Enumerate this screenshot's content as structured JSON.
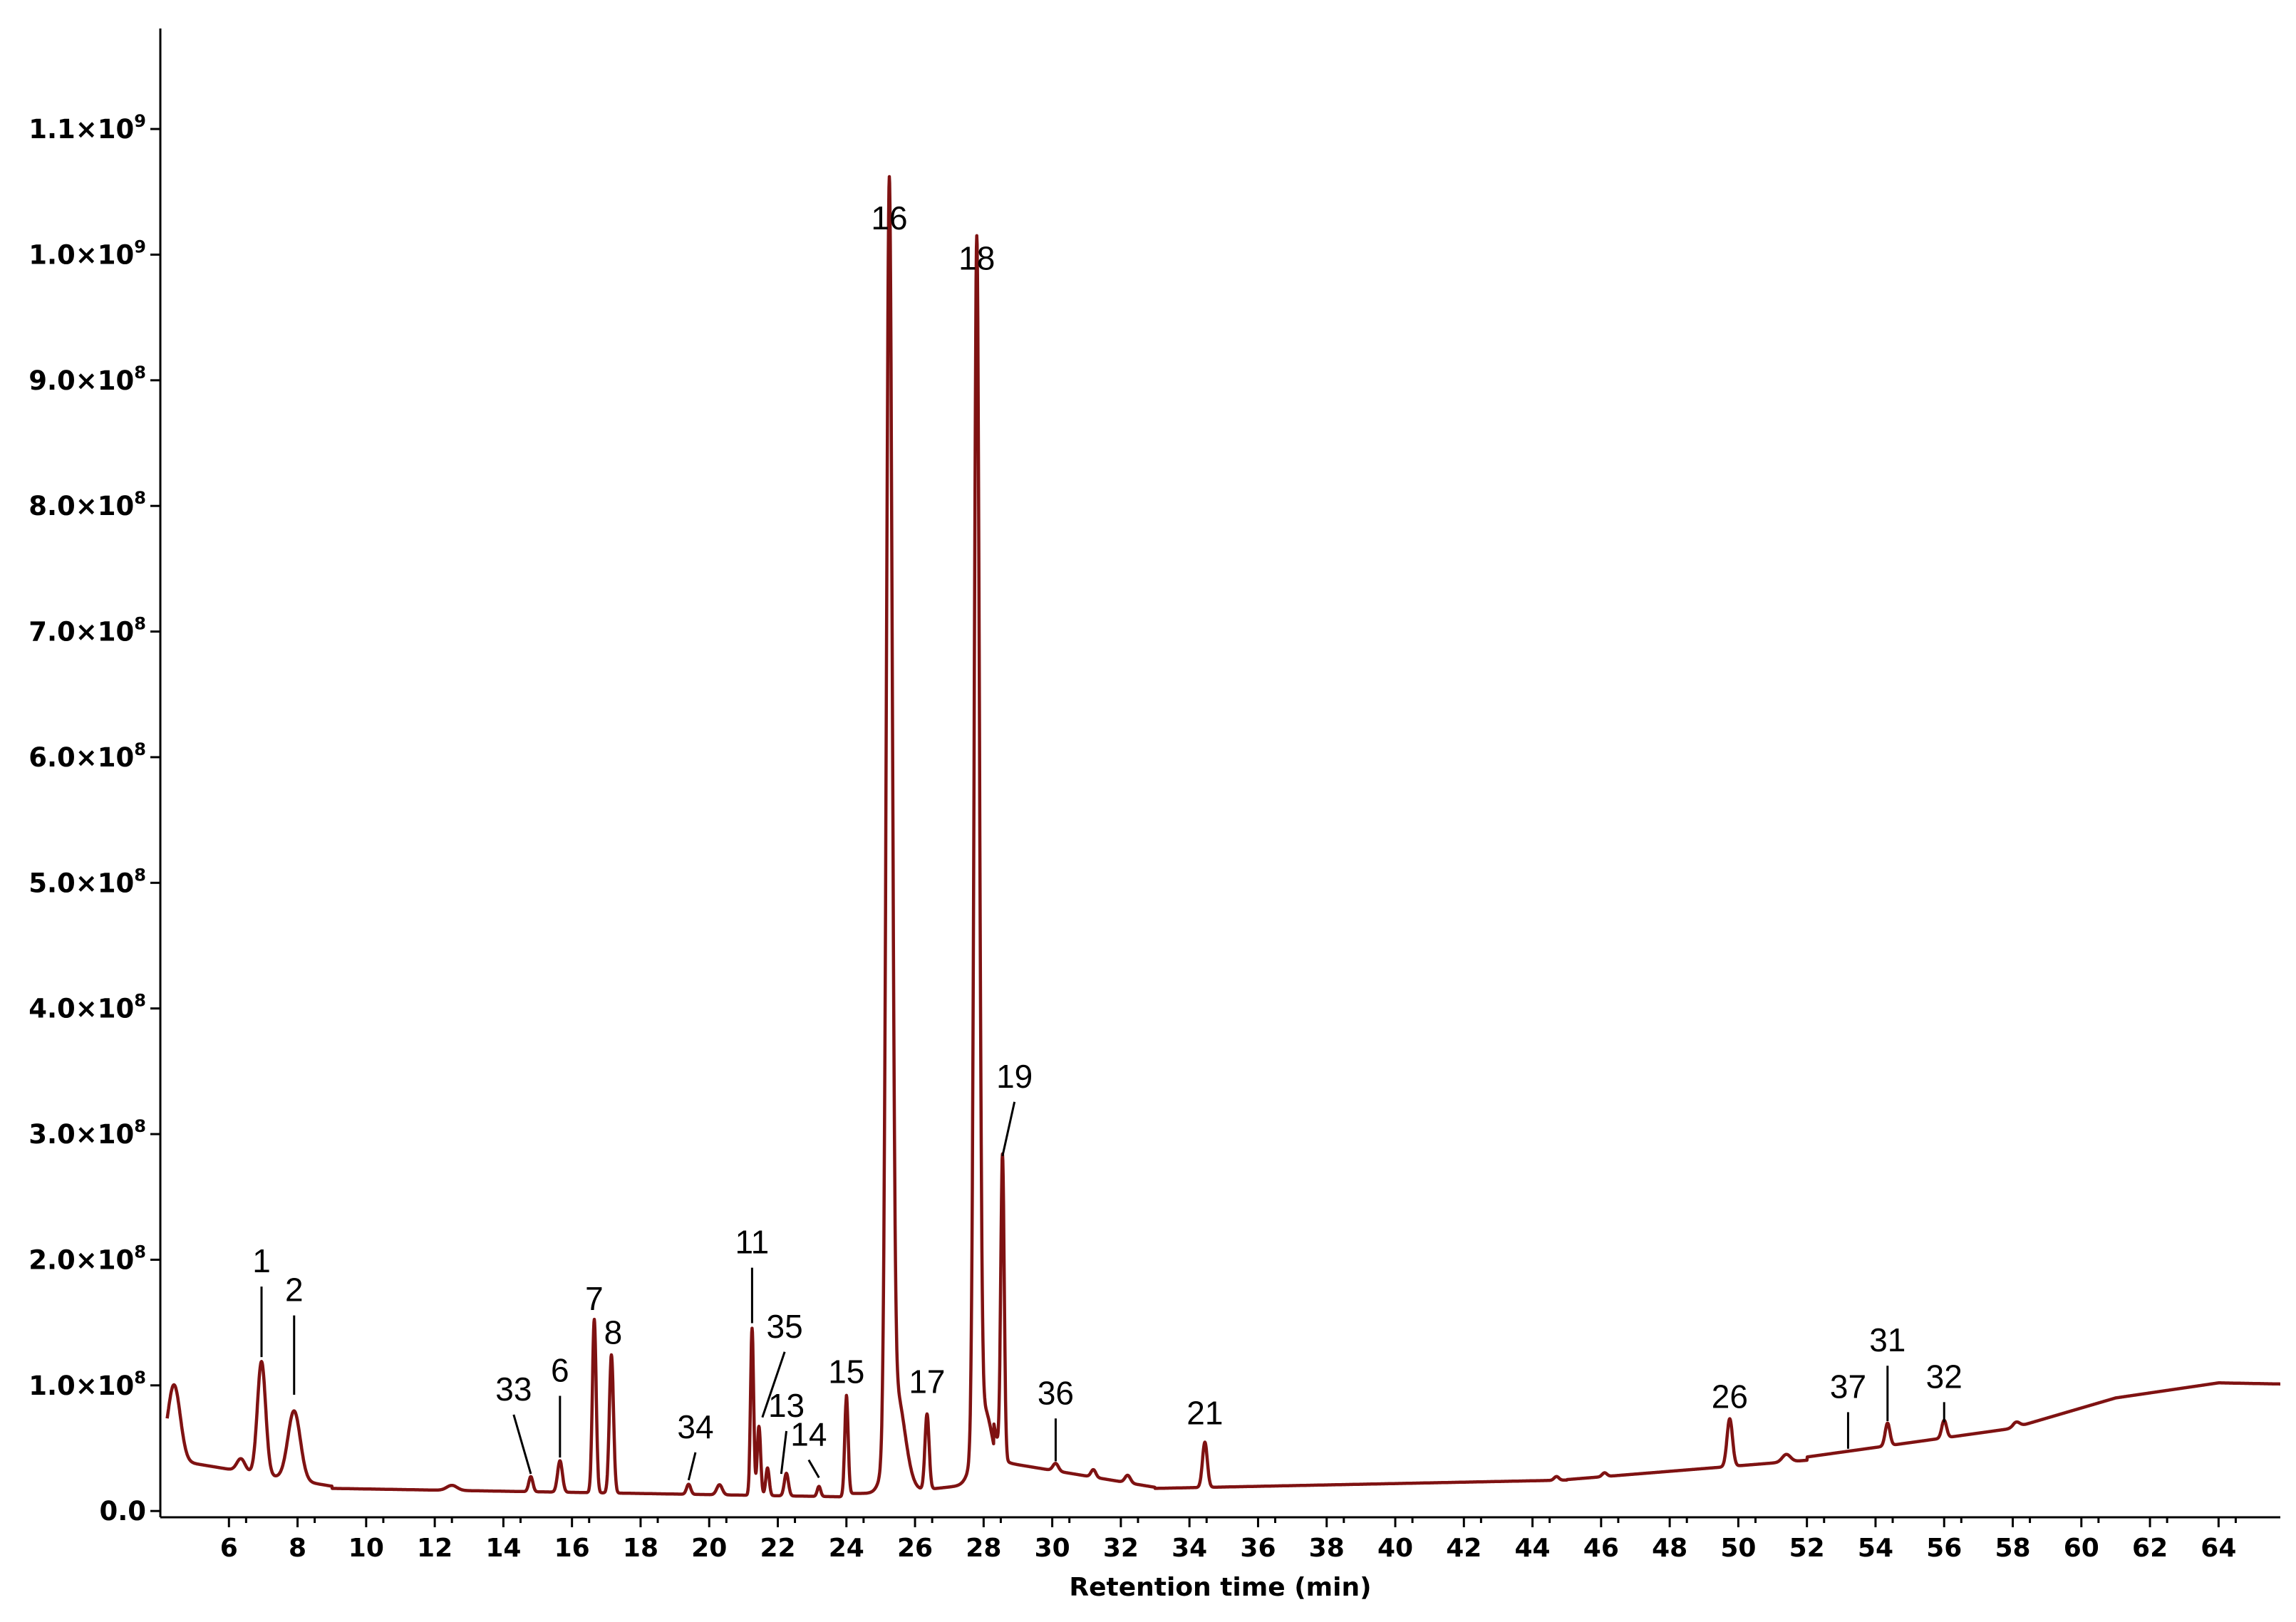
{
  "chart_data": {
    "type": "line",
    "xlabel": "Retention time (min)",
    "ylabel": "",
    "title": "",
    "xlim": [
      4.0,
      65.8
    ],
    "ylim": [
      -5000000,
      1180000000
    ],
    "grid": false,
    "legend": "none",
    "line_color": "#7f1212",
    "x_ticks": [
      6,
      8,
      10,
      12,
      14,
      16,
      18,
      20,
      22,
      24,
      26,
      28,
      30,
      32,
      34,
      36,
      38,
      40,
      42,
      44,
      46,
      48,
      50,
      52,
      54,
      56,
      58,
      60,
      62,
      64
    ],
    "y_ticks": [
      {
        "value": 0,
        "mantissa": "0.0",
        "exp": ""
      },
      {
        "value": 100000000,
        "mantissa": "1.0×10",
        "exp": "8"
      },
      {
        "value": 200000000,
        "mantissa": "2.0×10",
        "exp": "8"
      },
      {
        "value": 300000000,
        "mantissa": "3.0×10",
        "exp": "8"
      },
      {
        "value": 400000000,
        "mantissa": "4.0×10",
        "exp": "8"
      },
      {
        "value": 500000000,
        "mantissa": "5.0×10",
        "exp": "8"
      },
      {
        "value": 600000000,
        "mantissa": "6.0×10",
        "exp": "8"
      },
      {
        "value": 700000000,
        "mantissa": "7.0×10",
        "exp": "8"
      },
      {
        "value": 800000000,
        "mantissa": "8.0×10",
        "exp": "8"
      },
      {
        "value": 900000000,
        "mantissa": "9.0×10",
        "exp": "8"
      },
      {
        "value": 1000000000,
        "mantissa": "1.0×10",
        "exp": "9"
      },
      {
        "value": 1100000000,
        "mantissa": "1.1×10",
        "exp": "9"
      }
    ],
    "peaks": [
      {
        "label": "1",
        "x": 6.95,
        "y": 118000000,
        "label_x": 6.95,
        "label_y": 190000000,
        "leader": true
      },
      {
        "label": "2",
        "x": 7.9,
        "y": 88000000,
        "label_x": 7.9,
        "label_y": 167000000,
        "leader": true
      },
      {
        "label": "33",
        "x": 14.8,
        "y": 25000000,
        "label_x": 14.3,
        "label_y": 88000000,
        "leader": true
      },
      {
        "label": "6",
        "x": 15.65,
        "y": 38000000,
        "label_x": 15.65,
        "label_y": 103000000,
        "leader": true
      },
      {
        "label": "7",
        "x": 16.65,
        "y": 148000000,
        "label_x": 16.65,
        "label_y": 160000000,
        "leader": false
      },
      {
        "label": "8",
        "x": 17.15,
        "y": 121000000,
        "label_x": 17.2,
        "label_y": 133000000,
        "leader": false
      },
      {
        "label": "34",
        "x": 19.4,
        "y": 20000000,
        "label_x": 19.6,
        "label_y": 58000000,
        "leader": true
      },
      {
        "label": "11",
        "x": 21.25,
        "y": 145000000,
        "label_x": 21.25,
        "label_y": 205000000,
        "leader": true
      },
      {
        "label": "35",
        "x": 21.55,
        "y": 70000000,
        "label_x": 22.2,
        "label_y": 138000000,
        "leader": true
      },
      {
        "label": "13",
        "x": 22.1,
        "y": 25000000,
        "label_x": 22.25,
        "label_y": 75000000,
        "leader": true
      },
      {
        "label": "14",
        "x": 23.2,
        "y": 22000000,
        "label_x": 22.9,
        "label_y": 52000000,
        "leader": true
      },
      {
        "label": "15",
        "x": 24.0,
        "y": 90000000,
        "label_x": 24.0,
        "label_y": 102000000,
        "leader": false
      },
      {
        "label": "16",
        "x": 25.25,
        "y": 1007000000,
        "label_x": 25.25,
        "label_y": 1020000000,
        "leader": false
      },
      {
        "label": "17",
        "x": 26.35,
        "y": 82000000,
        "label_x": 26.35,
        "label_y": 94000000,
        "leader": false
      },
      {
        "label": "18",
        "x": 27.8,
        "y": 972000000,
        "label_x": 27.8,
        "label_y": 988000000,
        "leader": false
      },
      {
        "label": "19",
        "x": 28.55,
        "y": 278000000,
        "label_x": 28.9,
        "label_y": 337000000,
        "leader": true
      },
      {
        "label": "36",
        "x": 30.1,
        "y": 35000000,
        "label_x": 30.1,
        "label_y": 85000000,
        "leader": true
      },
      {
        "label": "21",
        "x": 34.45,
        "y": 56000000,
        "label_x": 34.45,
        "label_y": 69000000,
        "leader": false
      },
      {
        "label": "26",
        "x": 49.75,
        "y": 70000000,
        "label_x": 49.75,
        "label_y": 82000000,
        "leader": false
      },
      {
        "label": "37",
        "x": 53.2,
        "y": 45000000,
        "label_x": 53.2,
        "label_y": 90000000,
        "leader": true
      },
      {
        "label": "31",
        "x": 54.35,
        "y": 67000000,
        "label_x": 54.35,
        "label_y": 127000000,
        "leader": true
      },
      {
        "label": "32",
        "x": 56.0,
        "y": 66000000,
        "label_x": 56.0,
        "label_y": 98000000,
        "leader": true
      }
    ]
  }
}
